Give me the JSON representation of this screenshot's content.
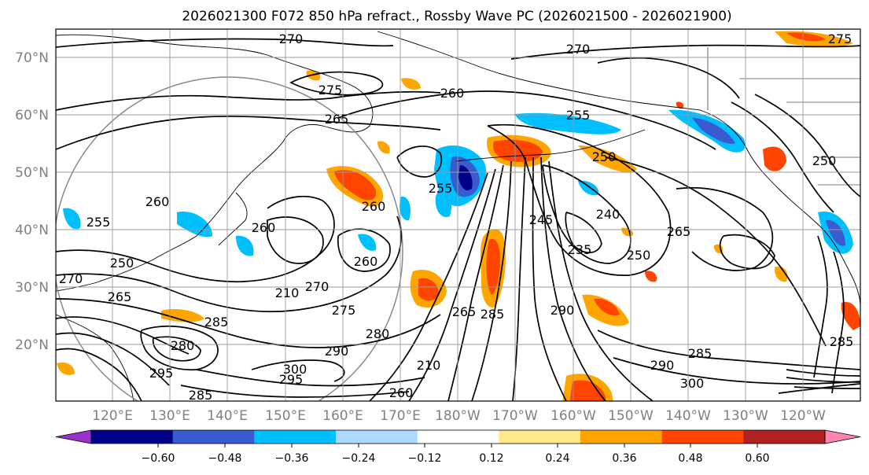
{
  "map": {
    "title": "2026021300 F072 850 hPa refract., Rossby Wave PC (2026021500 - 2026021900)",
    "lat_labels": [
      "70°N",
      "60°N",
      "50°N",
      "40°N",
      "30°N",
      "20°N"
    ],
    "lon_labels": [
      "120°E",
      "130°E",
      "140°E",
      "150°E",
      "160°E",
      "170°E",
      "180°W",
      "170°W",
      "160°W",
      "150°W",
      "140°W",
      "130°W",
      "120°W"
    ],
    "contour_labels": [
      "270",
      "270",
      "275",
      "275",
      "260",
      "265",
      "255",
      "250",
      "255",
      "260",
      "260",
      "260",
      "240",
      "245",
      "235",
      "265",
      "250",
      "260",
      "270",
      "210",
      "275",
      "270",
      "280",
      "265",
      "285",
      "290",
      "290",
      "285",
      "300",
      "290",
      "285",
      "295",
      "295",
      "285",
      "260",
      "265",
      "280",
      "300",
      "250",
      "250",
      "255",
      "210",
      "285"
    ],
    "colorbar": {
      "ticks": [
        "−0.60",
        "−0.48",
        "−0.36",
        "−0.24",
        "−0.12",
        "0.12",
        "0.24",
        "0.36",
        "0.48",
        "0.60"
      ],
      "colors": [
        "#9932cc",
        "#00008b",
        "#3a5bd0",
        "#00bfff",
        "#add8ff",
        "#ffffff",
        "#ffe98a",
        "#ffa500",
        "#ff4500",
        "#b22222",
        "#ff85b0"
      ]
    },
    "colors": {
      "grid": "#999999",
      "coast": "#000000",
      "circle": "#888888"
    }
  }
}
